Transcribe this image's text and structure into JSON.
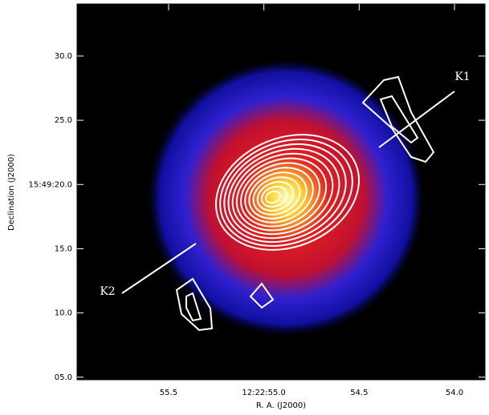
{
  "chart_data": {
    "type": "image",
    "xlabel": "R. A. (J2000)",
    "ylabel": "Declination (J2000)",
    "xlim": [
      55.98,
      53.84
    ],
    "ylim": [
      4.8,
      34.05
    ],
    "xticks": [
      55.5,
      {
        "value": 55.0,
        "label": "12:22:55.0"
      },
      54.5,
      {
        "value": 54.0,
        "label": "54.0"
      }
    ],
    "yticks": [
      {
        "value": 5,
        "label": "05.0"
      },
      {
        "value": 10,
        "label": "10.0"
      },
      {
        "value": 15,
        "label": "15.0"
      },
      {
        "value": 20,
        "label": "15:49:20.0"
      },
      {
        "value": 25,
        "label": "25.0"
      },
      {
        "value": 30,
        "label": "30.0"
      }
    ],
    "annotations": [
      "K1",
      "K2"
    ]
  }
}
